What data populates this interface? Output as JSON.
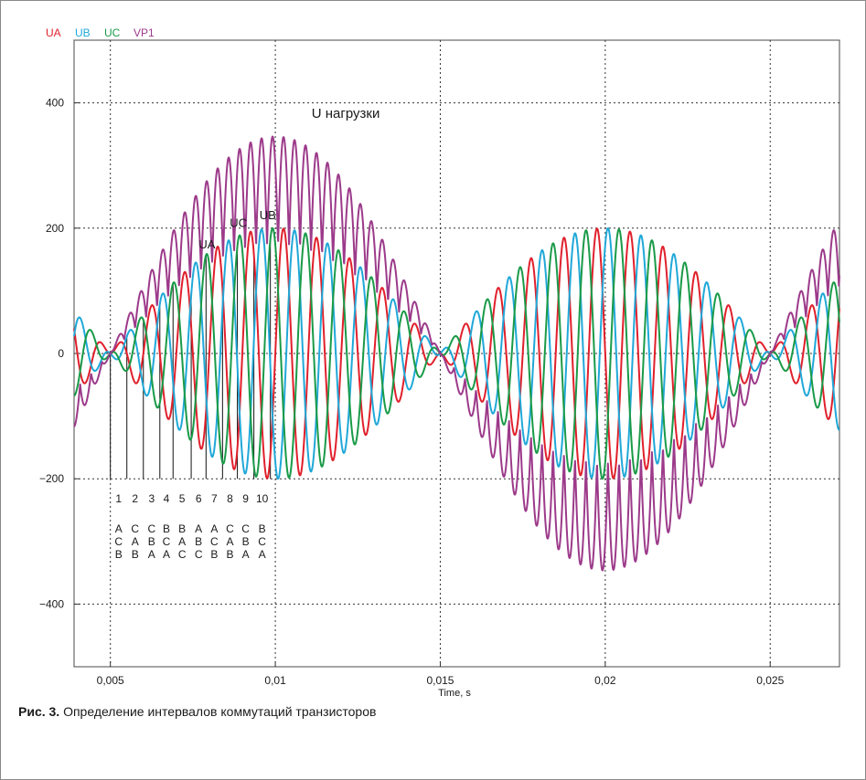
{
  "caption": {
    "label": "Рис. 3.",
    "text": "Определение интервалов коммутаций транзисторов"
  },
  "chart_data": {
    "type": "line",
    "xlabel": "Time, s",
    "ylabel": "",
    "xlim": [
      0.0039,
      0.0271
    ],
    "ylim": [
      -500,
      500
    ],
    "grid": true,
    "legend_position": "top-left",
    "x_ticks": [
      0.005,
      0.01,
      0.015,
      0.02,
      0.025
    ],
    "x_tick_labels": [
      "0,005",
      "0,01",
      "0,015",
      "0,02",
      "0,025"
    ],
    "y_ticks": [
      400,
      200,
      0,
      -200,
      -400
    ],
    "y_tick_labels": [
      "400",
      "200",
      "0",
      "−200",
      "−400"
    ],
    "series": [
      {
        "name": "UA",
        "color": "#e0202c",
        "phase_deg": 0
      },
      {
        "name": "UB",
        "color": "#20a8d8",
        "phase_deg": -120
      },
      {
        "name": "UC",
        "color": "#1a9a48",
        "phase_deg": 120
      },
      {
        "name": "VP1",
        "color": "#9c3a8a",
        "phase_deg": null
      }
    ],
    "model": {
      "carrier_hz": 1000,
      "envelope_hz": 50,
      "amplitude": 200,
      "envelope_zero_s": 0.005,
      "vp1_scale": 1.732
    },
    "annotations": [
      {
        "text": "U нагрузки",
        "x": 0.0111,
        "y": 376
      },
      {
        "text": "UA",
        "x": 0.00768,
        "y": 168
      },
      {
        "text": "UC",
        "x": 0.00862,
        "y": 202
      },
      {
        "text": "UB",
        "x": 0.00952,
        "y": 214
      }
    ],
    "intervals": {
      "line_x": [
        0.005,
        0.0055,
        0.006,
        0.0065,
        0.0069,
        0.00745,
        0.0079,
        0.0084,
        0.00885,
        0.00935,
        0.00985
      ],
      "labels": [
        "1",
        "2",
        "3",
        "4",
        "5",
        "6",
        "7",
        "8",
        "9",
        "10"
      ],
      "rows": [
        [
          "A",
          "C",
          "C",
          "B",
          "B",
          "A",
          "A",
          "C",
          "C",
          "B"
        ],
        [
          "C",
          "A",
          "B",
          "C",
          "A",
          "B",
          "C",
          "A",
          "B",
          "C"
        ],
        [
          "B",
          "B",
          "A",
          "A",
          "C",
          "C",
          "B",
          "B",
          "A",
          "A"
        ]
      ]
    }
  }
}
